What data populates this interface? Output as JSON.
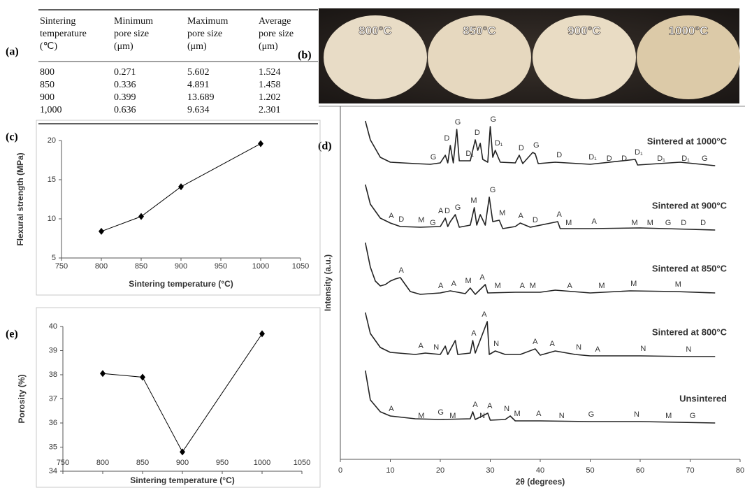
{
  "panel_labels": [
    "(a)",
    "(b)",
    "(c)",
    "(d)",
    "(e)"
  ],
  "table": {
    "header": [
      [
        "Sintering",
        "temperature",
        "(℃)"
      ],
      [
        "Minimum",
        "pore size",
        "(μm)"
      ],
      [
        "Maximum",
        "pore size",
        "(μm)"
      ],
      [
        "Average",
        "pore size",
        "(μm)"
      ]
    ],
    "rows": [
      [
        800,
        0.271,
        5.602,
        1.524
      ],
      [
        850,
        0.336,
        4.891,
        1.458
      ],
      [
        900,
        0.399,
        13.689,
        1.202
      ],
      [
        "1,000",
        0.636,
        9.634,
        2.301
      ]
    ]
  },
  "photo": {
    "labels": [
      "800°C",
      "850°C",
      "900°C",
      "1000°C"
    ]
  },
  "chart_data": [
    {
      "type": "line",
      "marker": "diamond",
      "color": "#000000",
      "x_label": "Sintering temperature (°C)",
      "y_label": "Flexural strength (MPa)",
      "x": [
        800,
        850,
        900,
        1000
      ],
      "values": [
        8.4,
        10.3,
        14.1,
        19.6
      ],
      "xlim": [
        750,
        1050
      ],
      "xticks": [
        750,
        800,
        850,
        900,
        950,
        1000,
        1050
      ],
      "ylim": [
        5,
        20
      ],
      "yticks": [
        5,
        10,
        15,
        20
      ]
    },
    {
      "type": "line",
      "marker": "diamond",
      "color": "#000000",
      "x_label": "Sintering temperature (°C)",
      "y_label": "Porosity (%)",
      "x": [
        800,
        850,
        900,
        1000
      ],
      "values": [
        38.05,
        37.9,
        34.8,
        39.7
      ],
      "xlim": [
        750,
        1050
      ],
      "xticks": [
        750,
        800,
        850,
        900,
        950,
        1000,
        1050
      ],
      "ylim": [
        34,
        40
      ],
      "yticks": [
        34,
        35,
        36,
        37,
        38,
        39,
        40
      ]
    },
    {
      "type": "xrd",
      "x_label": "2θ (degrees)",
      "y_label": "Intensity (a.u.)",
      "xlim": [
        0,
        80
      ],
      "xticks": [
        0,
        10,
        20,
        30,
        40,
        50,
        60,
        70,
        80
      ],
      "ylim": [
        0,
        505
      ],
      "series": [
        {
          "name": "Sintered at 1000°C",
          "color": "#222222",
          "x": [
            5,
            6,
            8,
            10,
            15,
            18,
            20,
            21,
            21.5,
            22,
            22.6,
            23.3,
            23.8,
            26,
            27,
            27.5,
            28,
            28.5,
            29.5,
            30,
            30.5,
            31,
            32,
            35,
            35.8,
            36.5,
            38.5,
            39,
            39.6,
            43,
            50,
            59,
            59.5,
            68,
            75
          ],
          "values": [
            484,
            457,
            432,
            425,
            423,
            422,
            424,
            435,
            424,
            449,
            424,
            472,
            427,
            427,
            457,
            442,
            452,
            429,
            425,
            476,
            432,
            442,
            425,
            424,
            435,
            423,
            439,
            437,
            423,
            425,
            422,
            429,
            421,
            425,
            420
          ],
          "annotations": [
            {
              "label": "G",
              "x": 18.6
            },
            {
              "label": "D",
              "x": 21.3
            },
            {
              "label": "G",
              "x": 23.5
            },
            {
              "label": "D₁",
              "x": 25.9
            },
            {
              "label": "D",
              "x": 27.4
            },
            {
              "label": "G",
              "x": 30.6
            },
            {
              "label": "D₁",
              "x": 31.7
            },
            {
              "label": "D",
              "x": 36.2
            },
            {
              "label": "G",
              "x": 39.2
            },
            {
              "label": "D",
              "x": 43.8
            },
            {
              "label": "D₁",
              "x": 50.5
            },
            {
              "label": "D",
              "x": 53.8
            },
            {
              "label": "D",
              "x": 56.8
            },
            {
              "label": "D₁",
              "x": 59.7
            },
            {
              "label": "D₁",
              "x": 64.2
            },
            {
              "label": "D₁",
              "x": 69.1
            },
            {
              "label": "G",
              "x": 72.9
            }
          ]
        },
        {
          "name": "Sintered at 900°C",
          "color": "#222222",
          "x": [
            5,
            6,
            8,
            10,
            12,
            16,
            20,
            21,
            21.5,
            22,
            23,
            23.8,
            26,
            26.8,
            27.3,
            28,
            29,
            29.8,
            30.5,
            31.8,
            32.5,
            35,
            36,
            38,
            43.5,
            44,
            50,
            60,
            70,
            75
          ],
          "values": [
            393,
            365,
            345,
            338,
            333,
            332,
            333,
            345,
            333,
            340,
            350,
            332,
            335,
            360,
            335,
            350,
            335,
            375,
            340,
            342,
            330,
            333,
            338,
            332,
            340,
            330,
            330,
            331,
            329,
            328
          ],
          "annotations": [
            {
              "label": "A",
              "x": 10.2
            },
            {
              "label": "D",
              "x": 12.2
            },
            {
              "label": "M",
              "x": 16.2
            },
            {
              "label": "G",
              "x": 18.5
            },
            {
              "label": "A",
              "x": 20.1
            },
            {
              "label": "D",
              "x": 21.4
            },
            {
              "label": "G",
              "x": 23.5
            },
            {
              "label": "M",
              "x": 26.7
            },
            {
              "label": "G",
              "x": 30.5
            },
            {
              "label": "M",
              "x": 32.4
            },
            {
              "label": "A",
              "x": 36.1
            },
            {
              "label": "D",
              "x": 39.0
            },
            {
              "label": "A",
              "x": 43.8
            },
            {
              "label": "M",
              "x": 45.7
            },
            {
              "label": "A",
              "x": 50.8
            },
            {
              "label": "M",
              "x": 58.9
            },
            {
              "label": "M",
              "x": 62.0
            },
            {
              "label": "G",
              "x": 65.6
            },
            {
              "label": "D",
              "x": 68.7
            },
            {
              "label": "D",
              "x": 72.6
            }
          ]
        },
        {
          "name": "Sintered at 850°C",
          "color": "#222222",
          "x": [
            5,
            6,
            7,
            8,
            9,
            10,
            11,
            12,
            13,
            14,
            16,
            20,
            22,
            25,
            26,
            27,
            29,
            29.5,
            35,
            40,
            43,
            50,
            58,
            67,
            75
          ],
          "values": [
            310,
            275,
            255,
            248,
            250,
            255,
            258,
            260,
            250,
            240,
            236,
            238,
            241,
            237,
            245,
            236,
            250,
            238,
            239,
            239,
            242,
            238,
            241,
            240,
            238
          ],
          "annotations": [
            {
              "label": "A",
              "x": 12.2
            },
            {
              "label": "A",
              "x": 20.1
            },
            {
              "label": "A",
              "x": 22.7
            },
            {
              "label": "M",
              "x": 25.6
            },
            {
              "label": "A",
              "x": 28.4
            },
            {
              "label": "M",
              "x": 31.5
            },
            {
              "label": "A",
              "x": 36.4
            },
            {
              "label": "M",
              "x": 38.5
            },
            {
              "label": "A",
              "x": 45.9
            },
            {
              "label": "M",
              "x": 52.3
            },
            {
              "label": "M",
              "x": 58.7
            },
            {
              "label": "M",
              "x": 67.6
            }
          ]
        },
        {
          "name": "Sintered at 800°C",
          "color": "#222222",
          "x": [
            5,
            6,
            8,
            10,
            15,
            17,
            20,
            21,
            21.5,
            23,
            23.5,
            26,
            26.5,
            27,
            29.4,
            29.8,
            31,
            33,
            36,
            39,
            40,
            43,
            47,
            50,
            60,
            70,
            75
          ],
          "values": [
            210,
            180,
            160,
            153,
            150,
            152,
            150,
            162,
            150,
            170,
            150,
            152,
            170,
            152,
            197,
            150,
            155,
            150,
            150,
            158,
            149,
            155,
            150,
            148,
            148,
            147,
            147
          ],
          "annotations": [
            {
              "label": "A",
              "x": 16.1
            },
            {
              "label": "N",
              "x": 19.2
            },
            {
              "label": "A",
              "x": 26.7
            },
            {
              "label": "A",
              "x": 28.8
            },
            {
              "label": "N",
              "x": 31.2
            },
            {
              "label": "A",
              "x": 39.0
            },
            {
              "label": "A",
              "x": 42.4
            },
            {
              "label": "N",
              "x": 47.7
            },
            {
              "label": "A",
              "x": 51.5
            },
            {
              "label": "N",
              "x": 60.6
            },
            {
              "label": "N",
              "x": 69.7
            }
          ]
        },
        {
          "name": "Unsintered",
          "color": "#222222",
          "x": [
            5,
            6,
            8,
            10,
            15,
            20,
            26,
            26.5,
            27,
            29.5,
            30,
            33,
            34,
            35,
            40,
            50,
            60,
            75
          ],
          "values": [
            127,
            85,
            68,
            62,
            58,
            57,
            58,
            68,
            57,
            66,
            56,
            57,
            62,
            55,
            55,
            54,
            54,
            52
          ],
          "annotations": [
            {
              "label": "A",
              "x": 10.2
            },
            {
              "label": "M",
              "x": 16.2
            },
            {
              "label": "G",
              "x": 20.1
            },
            {
              "label": "M",
              "x": 22.5
            },
            {
              "label": "A",
              "x": 27.0
            },
            {
              "label": "N",
              "x": 28.4
            },
            {
              "label": "A",
              "x": 29.9
            },
            {
              "label": "N",
              "x": 33.3
            },
            {
              "label": "M",
              "x": 35.4
            },
            {
              "label": "A",
              "x": 39.7
            },
            {
              "label": "N",
              "x": 44.3
            },
            {
              "label": "G",
              "x": 50.2
            },
            {
              "label": "N",
              "x": 59.3
            },
            {
              "label": "M",
              "x": 65.7
            },
            {
              "label": "G",
              "x": 70.5
            }
          ]
        }
      ]
    }
  ]
}
